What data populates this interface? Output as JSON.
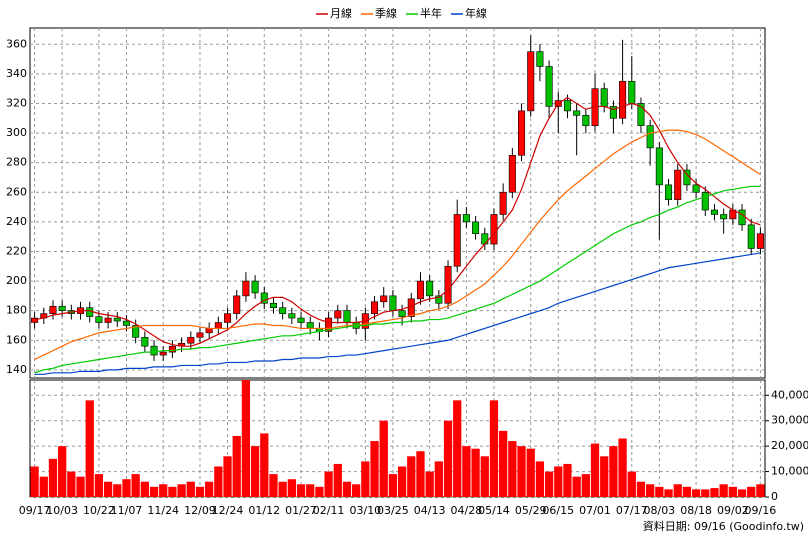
{
  "chart_data": [
    {
      "type": "candlestick",
      "up_color": "#ff0000",
      "down_color": "#00c000",
      "ylim": [
        134.5,
        371
      ],
      "yticks": [
        140,
        160,
        180,
        200,
        220,
        240,
        260,
        280,
        300,
        320,
        340,
        360
      ],
      "grid": true,
      "legend": "top",
      "open": [
        172,
        175,
        178,
        183,
        180,
        178,
        182,
        176,
        172,
        175,
        173,
        170,
        162,
        156,
        150,
        152,
        156,
        158,
        162,
        165,
        168,
        172,
        178,
        190,
        200,
        192,
        185,
        182,
        178,
        175,
        172,
        168,
        166,
        175,
        180,
        172,
        168,
        178,
        186,
        190,
        180,
        176,
        188,
        200,
        190,
        185,
        210,
        245,
        240,
        232,
        225,
        245,
        260,
        285,
        315,
        355,
        345,
        318,
        322,
        315,
        312,
        305,
        330,
        318,
        310,
        335,
        320,
        305,
        290,
        265,
        255,
        275,
        265,
        260,
        248,
        245,
        242,
        248,
        238,
        222
      ],
      "high": [
        179,
        182,
        187,
        187,
        184,
        186,
        186,
        180,
        179,
        179,
        177,
        174,
        166,
        160,
        156,
        160,
        162,
        166,
        169,
        172,
        176,
        182,
        194,
        206,
        204,
        196,
        189,
        186,
        182,
        179,
        176,
        172,
        179,
        184,
        184,
        176,
        182,
        190,
        196,
        194,
        184,
        192,
        206,
        204,
        194,
        214,
        255,
        250,
        244,
        236,
        249,
        266,
        290,
        320,
        366,
        360,
        349,
        328,
        326,
        320,
        316,
        340,
        334,
        322,
        363,
        352,
        324,
        309,
        294,
        269,
        279,
        279,
        269,
        264,
        252,
        249,
        252,
        252,
        242,
        236
      ],
      "low": [
        168,
        171,
        174,
        176,
        174,
        174,
        172,
        168,
        168,
        169,
        166,
        158,
        152,
        146,
        146,
        148,
        152,
        154,
        158,
        161,
        164,
        168,
        174,
        186,
        188,
        181,
        178,
        174,
        171,
        168,
        164,
        160,
        162,
        171,
        168,
        164,
        160,
        174,
        182,
        176,
        170,
        172,
        184,
        186,
        181,
        181,
        206,
        236,
        228,
        221,
        221,
        241,
        256,
        281,
        311,
        335,
        310,
        300,
        310,
        285,
        300,
        301,
        314,
        300,
        306,
        316,
        300,
        278,
        228,
        251,
        251,
        261,
        256,
        244,
        241,
        232,
        238,
        234,
        218,
        218
      ],
      "close": [
        175,
        178,
        183,
        180,
        178,
        182,
        176,
        172,
        175,
        173,
        170,
        162,
        156,
        150,
        152,
        156,
        158,
        162,
        165,
        168,
        172,
        178,
        190,
        200,
        192,
        185,
        182,
        178,
        175,
        172,
        168,
        166,
        175,
        180,
        172,
        168,
        178,
        186,
        190,
        180,
        176,
        188,
        200,
        190,
        185,
        210,
        245,
        240,
        232,
        225,
        245,
        260,
        285,
        315,
        355,
        345,
        318,
        322,
        315,
        312,
        305,
        330,
        318,
        310,
        335,
        320,
        305,
        290,
        265,
        255,
        275,
        265,
        260,
        248,
        245,
        242,
        248,
        238,
        222,
        232
      ],
      "series": [
        {
          "name": "月線",
          "color": "#cc0000",
          "values": [
            174,
            175,
            177,
            178,
            179,
            180,
            180,
            178,
            177,
            176,
            174,
            171,
            167,
            163,
            159,
            157,
            156,
            156,
            158,
            161,
            164,
            167,
            172,
            178,
            183,
            187,
            189,
            189,
            186,
            181,
            177,
            174,
            172,
            172,
            172,
            172,
            173,
            176,
            179,
            180,
            181,
            183,
            186,
            188,
            189,
            194,
            202,
            210,
            218,
            225,
            232,
            240,
            248,
            262,
            280,
            298,
            310,
            320,
            324,
            320,
            316,
            318,
            318,
            316,
            318,
            320,
            318,
            312,
            302,
            290,
            280,
            272,
            266,
            262,
            257,
            252,
            248,
            245,
            240,
            238
          ]
        },
        {
          "name": "季線",
          "color": "#ff6600",
          "values": [
            147,
            150,
            153,
            156,
            159,
            161,
            163,
            165,
            166,
            167,
            168,
            169,
            170,
            170,
            170,
            170,
            170,
            170,
            169,
            168,
            168,
            168,
            169,
            170,
            171,
            171,
            170,
            170,
            169,
            168,
            168,
            168,
            168,
            169,
            170,
            170,
            171,
            172,
            173,
            174,
            175,
            177,
            178,
            180,
            181,
            183,
            186,
            190,
            194,
            198,
            204,
            210,
            217,
            225,
            233,
            241,
            248,
            255,
            261,
            266,
            271,
            276,
            281,
            286,
            290,
            294,
            297,
            300,
            301,
            302,
            302,
            301,
            299,
            296,
            292,
            288,
            284,
            280,
            276,
            272
          ]
        },
        {
          "name": "半年",
          "color": "#00cc00",
          "values": [
            138,
            140,
            141,
            143,
            144,
            145,
            146,
            147,
            148,
            149,
            150,
            151,
            152,
            152,
            153,
            153,
            154,
            154,
            155,
            155,
            156,
            157,
            158,
            159,
            160,
            161,
            162,
            163,
            163,
            164,
            165,
            166,
            167,
            168,
            169,
            170,
            170,
            171,
            171,
            172,
            172,
            173,
            173,
            174,
            174,
            175,
            177,
            179,
            181,
            183,
            185,
            188,
            191,
            194,
            197,
            200,
            204,
            208,
            212,
            216,
            220,
            224,
            228,
            232,
            235,
            238,
            240,
            243,
            245,
            248,
            250,
            253,
            255,
            257,
            259,
            261,
            262,
            263,
            264,
            264
          ]
        },
        {
          "name": "年線",
          "color": "#0044cc",
          "values": [
            137,
            137,
            138,
            138,
            138,
            139,
            139,
            139,
            140,
            140,
            141,
            141,
            141,
            142,
            142,
            142,
            143,
            143,
            143,
            144,
            144,
            145,
            145,
            145,
            146,
            146,
            146,
            147,
            147,
            148,
            148,
            148,
            149,
            149,
            150,
            150,
            151,
            152,
            153,
            154,
            155,
            156,
            157,
            158,
            159,
            160,
            162,
            164,
            166,
            168,
            170,
            172,
            174,
            176,
            178,
            180,
            182,
            185,
            187,
            189,
            191,
            193,
            195,
            197,
            199,
            201,
            203,
            205,
            207,
            209,
            210,
            211,
            212,
            213,
            214,
            215,
            216,
            217,
            218,
            219
          ]
        }
      ]
    },
    {
      "type": "bar",
      "color": "#ff0000",
      "categories": [
        "09/17",
        null,
        null,
        "10/03",
        null,
        null,
        null,
        "10/22",
        null,
        null,
        "11/07",
        null,
        null,
        null,
        "11/24",
        null,
        null,
        null,
        "12/09",
        null,
        null,
        "12/24",
        null,
        null,
        null,
        "01/12",
        null,
        null,
        null,
        "01/27",
        null,
        null,
        "02/11",
        null,
        null,
        null,
        "03/10",
        null,
        null,
        "03/25",
        null,
        null,
        null,
        "04/13",
        null,
        null,
        null,
        "04/28",
        null,
        null,
        "05/14",
        null,
        null,
        null,
        "05/29",
        null,
        null,
        "06/15",
        null,
        null,
        null,
        "07/01",
        null,
        null,
        null,
        "07/17",
        null,
        null,
        "08/03",
        null,
        null,
        null,
        "08/18",
        null,
        null,
        null,
        "09/02",
        null,
        null,
        "09/16"
      ],
      "values": [
        12000,
        8000,
        15000,
        20000,
        10000,
        8000,
        38000,
        9000,
        6000,
        5000,
        7000,
        9000,
        6000,
        4000,
        5000,
        4000,
        5000,
        6000,
        4000,
        6000,
        12000,
        16000,
        24000,
        46000,
        20000,
        25000,
        9000,
        6000,
        7000,
        5000,
        5000,
        4000,
        10000,
        13000,
        6000,
        5000,
        14000,
        22000,
        30000,
        9000,
        12000,
        16000,
        18000,
        10000,
        14000,
        30000,
        38000,
        20000,
        19000,
        16000,
        38000,
        26000,
        22000,
        20000,
        19000,
        14000,
        10000,
        12000,
        13000,
        8000,
        9000,
        21000,
        16000,
        20000,
        23000,
        10000,
        6000,
        5000,
        4000,
        3000,
        5000,
        4000,
        3000,
        3000,
        3500,
        5000,
        4000,
        3000,
        4000,
        5000
      ],
      "ylim": [
        0,
        46000
      ],
      "yticks": [
        0,
        {
          "value": 10000,
          "label": "10,000"
        },
        {
          "value": 20000,
          "label": "20,000"
        },
        {
          "value": 30000,
          "label": "30,000"
        },
        {
          "value": 40000,
          "label": "40,000"
        }
      ],
      "grid": true,
      "note": "資料日期: 09/16 (Goodinfo.tw)"
    }
  ]
}
